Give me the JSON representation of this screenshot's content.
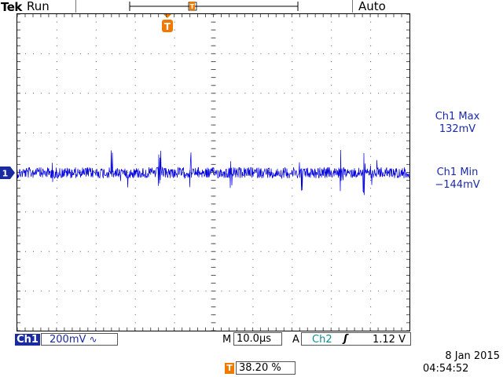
{
  "header": {
    "brand": "Tek",
    "run_state": "Run",
    "trigger_mode": "Auto"
  },
  "markers": {
    "trigger_marker": "T",
    "channel_marker": "1"
  },
  "measurements": [
    {
      "name": "Ch1 Max",
      "value": "132mV"
    },
    {
      "name": "Ch1 Min",
      "value": "−144mV"
    }
  ],
  "status_bar": {
    "channel": "Ch1",
    "volts_per_div": "200mV",
    "coupling_icon": "∿",
    "timebase_prefix": "M",
    "timebase": "10.0µs",
    "trigger_prefix": "A",
    "trigger_source": "Ch2",
    "trigger_slope_icon": "ʃ",
    "trigger_level": "1.12 V"
  },
  "trigger_position": {
    "badge": "T",
    "value": "38.20 %"
  },
  "datetime": {
    "date": "8 Jan  2015",
    "time": "04:54:52"
  },
  "colors": {
    "trace": "#0000e0",
    "trigger_orange": "#f07a00",
    "ch1_blue": "#1a2aa0",
    "ch2_teal": "#0f8c8c"
  }
}
